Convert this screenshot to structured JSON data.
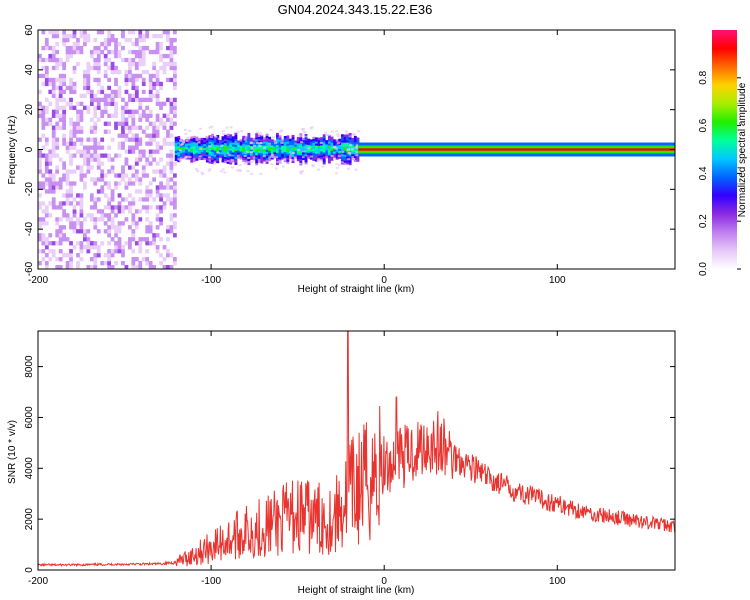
{
  "figure_title": "GN04.2024.343.15.22.E36",
  "colors": {
    "snr_line": "#e8332e",
    "colormap": [
      "#ffffff",
      "#e6c8f7",
      "#c07ef0",
      "#8a2be2",
      "#3300ff",
      "#0066ff",
      "#00c8ff",
      "#00ff99",
      "#22ee00",
      "#aaee00",
      "#ffd200",
      "#ff6a00",
      "#ff0000",
      "#ff1177"
    ]
  },
  "chart_data": [
    {
      "type": "heatmap",
      "title": "",
      "xlabel": "Height of straight line (km)",
      "ylabel": "Frequency (Hz)",
      "xlim": [
        -200,
        168
      ],
      "ylim": [
        -60,
        60
      ],
      "xticks": [
        -200,
        -100,
        0,
        100
      ],
      "yticks": [
        -60,
        -40,
        -20,
        0,
        20,
        40,
        60
      ],
      "colorbar": {
        "label": "Normalized spectral amplitude",
        "range": [
          0,
          1
        ],
        "ticks": [
          0.0,
          0.2,
          0.4,
          0.6,
          0.8
        ]
      },
      "regions": [
        {
          "x_range": [
            -200,
            -121
          ],
          "freq_range": [
            -60,
            60
          ],
          "amplitude": 0.05
        },
        {
          "x_range": [
            -121,
            -15
          ],
          "freq_range": [
            -6,
            6
          ],
          "amplitude": 0.35
        },
        {
          "x_range": [
            -15,
            168
          ],
          "freq_range": [
            -2,
            2
          ],
          "amplitude": 0.9
        }
      ]
    },
    {
      "type": "line",
      "title": "",
      "xlabel": "Height of straight line (km)",
      "ylabel": "SNR (10 * v/v)",
      "xlim": [
        -200,
        168
      ],
      "ylim": [
        0,
        9400
      ],
      "xticks": [
        -200,
        -100,
        0,
        100
      ],
      "yticks": [
        0,
        2000,
        4000,
        6000,
        8000
      ],
      "x": [
        -200,
        -180,
        -160,
        -140,
        -130,
        -120,
        -110,
        -100,
        -90,
        -80,
        -70,
        -60,
        -50,
        -40,
        -30,
        -25,
        -20,
        -15,
        -10,
        -5,
        0,
        5,
        8,
        10,
        15,
        20,
        25,
        30,
        35,
        40,
        50,
        60,
        70,
        80,
        90,
        100,
        110,
        120,
        130,
        140,
        150,
        160,
        168
      ],
      "y": [
        200,
        200,
        220,
        230,
        240,
        300,
        600,
        900,
        1200,
        1500,
        1700,
        1900,
        2200,
        2000,
        2000,
        2400,
        3000,
        3200,
        3500,
        3800,
        4000,
        4200,
        5200,
        4400,
        4600,
        4800,
        5000,
        5000,
        4700,
        4500,
        4100,
        3600,
        3300,
        3000,
        2800,
        2600,
        2400,
        2200,
        2100,
        2000,
        1900,
        1800,
        1700
      ],
      "peaks": [
        {
          "x": -21,
          "y": 9400
        },
        {
          "x": 7,
          "y": 6800
        }
      ]
    }
  ]
}
